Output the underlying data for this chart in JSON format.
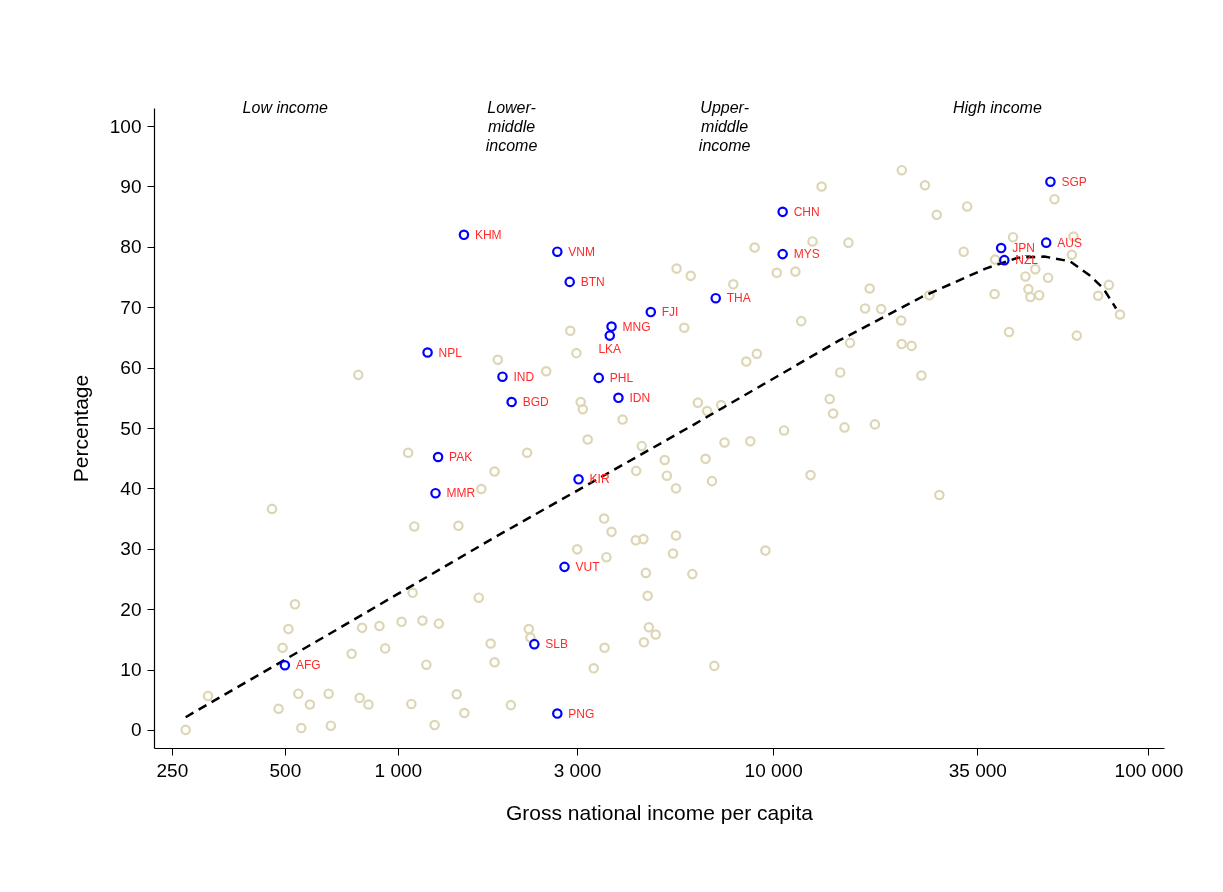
{
  "chart_data": {
    "type": "scatter",
    "xlabel": "Gross national income per capita",
    "ylabel": "Percentage",
    "log": "x",
    "grid": false,
    "marker": "circle",
    "xlim": [
      224,
      110000
    ],
    "ylim": [
      -3,
      103
    ],
    "xticks": [
      250,
      500,
      {
        "value": 1000,
        "label": "1 000"
      },
      {
        "value": 3000,
        "label": "3 000"
      },
      {
        "value": 10000,
        "label": "10 000"
      },
      {
        "value": 35000,
        "label": "35 000"
      },
      {
        "value": 100000,
        "label": "100 000"
      }
    ],
    "yticks": [
      0,
      10,
      20,
      30,
      40,
      50,
      60,
      70,
      80,
      90,
      100
    ],
    "series": [
      {
        "type": "scatter",
        "color": "#ddd6b5",
        "x": [
          784,
          1846,
          13460,
          8925,
          12730,
          10225,
          11460,
          5530,
          6030,
          7830,
          11880,
          2880,
          5795,
          2990,
          2485,
          8480,
          9050,
          15090,
          3070,
          3110,
          6300,
          6670,
          7270,
          14150,
          14450,
          3970,
          10690,
          22020,
          25380,
          32880,
          27280,
          56170,
          15870,
          32180,
          43560,
          63150,
          62500,
          39030,
          49940,
          47020,
          54010,
          18080,
          78440,
          73430,
          38900,
          47870,
          48450,
          51150,
          26090,
          17580,
          19400,
          83980,
          21930,
          16030,
          22000,
          23380,
          42520,
          64430,
          24830,
          15490,
          18670,
          27720,
          1065,
          1810,
          462,
          1669,
          1106,
          1450,
          532,
          1095,
          1643,
          511,
          803,
          893,
          1023,
          1163,
          1286,
          1767,
          1810,
          493,
          753,
          925,
          1191,
          312,
          543,
          654,
          583,
          791,
          835,
          1086,
          1435,
          1504,
          481,
          272,
          553,
          663,
          1253,
          3205,
          2210,
          4465,
          7420,
          8690,
          5140,
          6605,
          4315,
          5210,
          6870,
          12580,
          5510,
          3545,
          3710,
          4305,
          4510,
          5510,
          3005,
          3595,
          5410,
          9535,
          4580,
          6090,
          4630,
          2233,
          2255,
          4665,
          4865,
          4525,
          3555,
          3325,
          6970,
          2000
        ],
        "values": [
          58.8,
          61.3,
          90.0,
          79.9,
          80.9,
          75.7,
          75.9,
          76.4,
          75.2,
          73.8,
          67.7,
          66.1,
          66.6,
          62.4,
          59.4,
          61.0,
          62.3,
          59.2,
          54.3,
          53.1,
          54.2,
          52.8,
          53.8,
          54.8,
          52.4,
          51.4,
          49.6,
          92.7,
          90.2,
          86.7,
          85.3,
          87.9,
          80.7,
          79.2,
          81.6,
          81.7,
          78.7,
          77.9,
          76.3,
          75.1,
          74.9,
          73.1,
          73.7,
          71.9,
          72.2,
          73.0,
          71.7,
          72.0,
          72.0,
          69.8,
          69.7,
          68.8,
          67.8,
          64.1,
          63.9,
          63.6,
          65.9,
          65.3,
          58.7,
          50.1,
          50.6,
          38.9,
          45.9,
          42.8,
          36.6,
          39.9,
          33.7,
          33.8,
          20.8,
          22.7,
          21.9,
          16.7,
          16.9,
          17.2,
          17.9,
          18.1,
          17.6,
          14.3,
          11.2,
          13.6,
          12.6,
          13.5,
          10.8,
          5.6,
          6.0,
          6.0,
          4.2,
          5.3,
          4.2,
          4.3,
          5.9,
          2.8,
          3.5,
          0.0,
          0.3,
          0.7,
          0.8,
          48.1,
          45.9,
          47.0,
          47.6,
          47.8,
          44.7,
          44.9,
          42.9,
          42.1,
          41.2,
          42.2,
          40.0,
          35.0,
          32.8,
          31.4,
          31.6,
          32.2,
          29.9,
          28.6,
          29.2,
          29.7,
          26.0,
          25.8,
          22.2,
          16.7,
          15.3,
          17.0,
          15.8,
          14.5,
          13.6,
          10.2,
          10.6,
          4.1
        ]
      },
      {
        "type": "line",
        "color": "#000000",
        "line_style": "dashed",
        "marker": "none",
        "x": [
          272,
          705,
          1824,
          6043,
          15000,
          24880,
          36800,
          44900,
          52800,
          61800,
          69650,
          75850,
          82000
        ],
        "values": [
          2.1,
          17.0,
          32.0,
          50.3,
          64.5,
          71.7,
          76.4,
          78.2,
          78.4,
          77.6,
          75.3,
          73.1,
          69.8
        ]
      },
      {
        "type": "scatter",
        "color": "#0000ff",
        "x": [
          1500,
          2660,
          2870,
          4720,
          7030,
          10600,
          10600,
          3710,
          3670,
          1200,
          1900,
          3430,
          3870,
          2010,
          1280,
          1260,
          3030,
          2780,
          2310,
          2660,
          500,
          54800,
          40500,
          41300,
          53400
        ],
        "values": [
          82.0,
          79.2,
          74.2,
          69.2,
          71.5,
          85.8,
          78.8,
          66.8,
          65.3,
          62.5,
          58.5,
          58.3,
          55.0,
          54.3,
          45.2,
          39.2,
          41.5,
          27.0,
          14.2,
          2.7,
          10.7,
          90.8,
          79.8,
          77.8,
          80.7
        ]
      }
    ],
    "annotations": [
      "Low income",
      "Lower-\nmiddle\nincome",
      "Upper-\nmiddle\nincome",
      "High income",
      {
        "text": "KHM",
        "x": 1500,
        "y": 82.0
      },
      {
        "text": "VNM",
        "x": 2660,
        "y": 79.2
      },
      {
        "text": "BTN",
        "x": 2870,
        "y": 74.2
      },
      {
        "text": "FJI",
        "x": 4720,
        "y": 69.2
      },
      {
        "text": "THA",
        "x": 7030,
        "y": 71.5
      },
      {
        "text": "CHN",
        "x": 10600,
        "y": 85.8
      },
      {
        "text": "MYS",
        "x": 10600,
        "y": 78.8
      },
      {
        "text": "MNG",
        "x": 3710,
        "y": 66.8
      },
      {
        "text": "LKA",
        "x": 3670,
        "y": 65.3
      },
      {
        "text": "NPL",
        "x": 1200,
        "y": 62.5
      },
      {
        "text": "IND",
        "x": 1900,
        "y": 58.5
      },
      {
        "text": "PHL",
        "x": 3430,
        "y": 58.3
      },
      {
        "text": "IDN",
        "x": 3870,
        "y": 55.0
      },
      {
        "text": "BGD",
        "x": 2010,
        "y": 54.3
      },
      {
        "text": "PAK",
        "x": 1280,
        "y": 45.2
      },
      {
        "text": "MMR",
        "x": 1260,
        "y": 39.2
      },
      {
        "text": "KIR",
        "x": 3030,
        "y": 41.5
      },
      {
        "text": "VUT",
        "x": 2780,
        "y": 27.0
      },
      {
        "text": "SLB",
        "x": 2310,
        "y": 14.2
      },
      {
        "text": "PNG",
        "x": 2660,
        "y": 2.7
      },
      {
        "text": "AFG",
        "x": 500,
        "y": 10.7
      },
      {
        "text": "SGP",
        "x": 54800,
        "y": 90.8
      },
      {
        "text": "JPN",
        "x": 40500,
        "y": 79.8
      },
      {
        "text": "NZL",
        "x": 41300,
        "y": 77.8
      },
      {
        "text": "AUS",
        "x": 53400,
        "y": 80.7
      }
    ]
  }
}
